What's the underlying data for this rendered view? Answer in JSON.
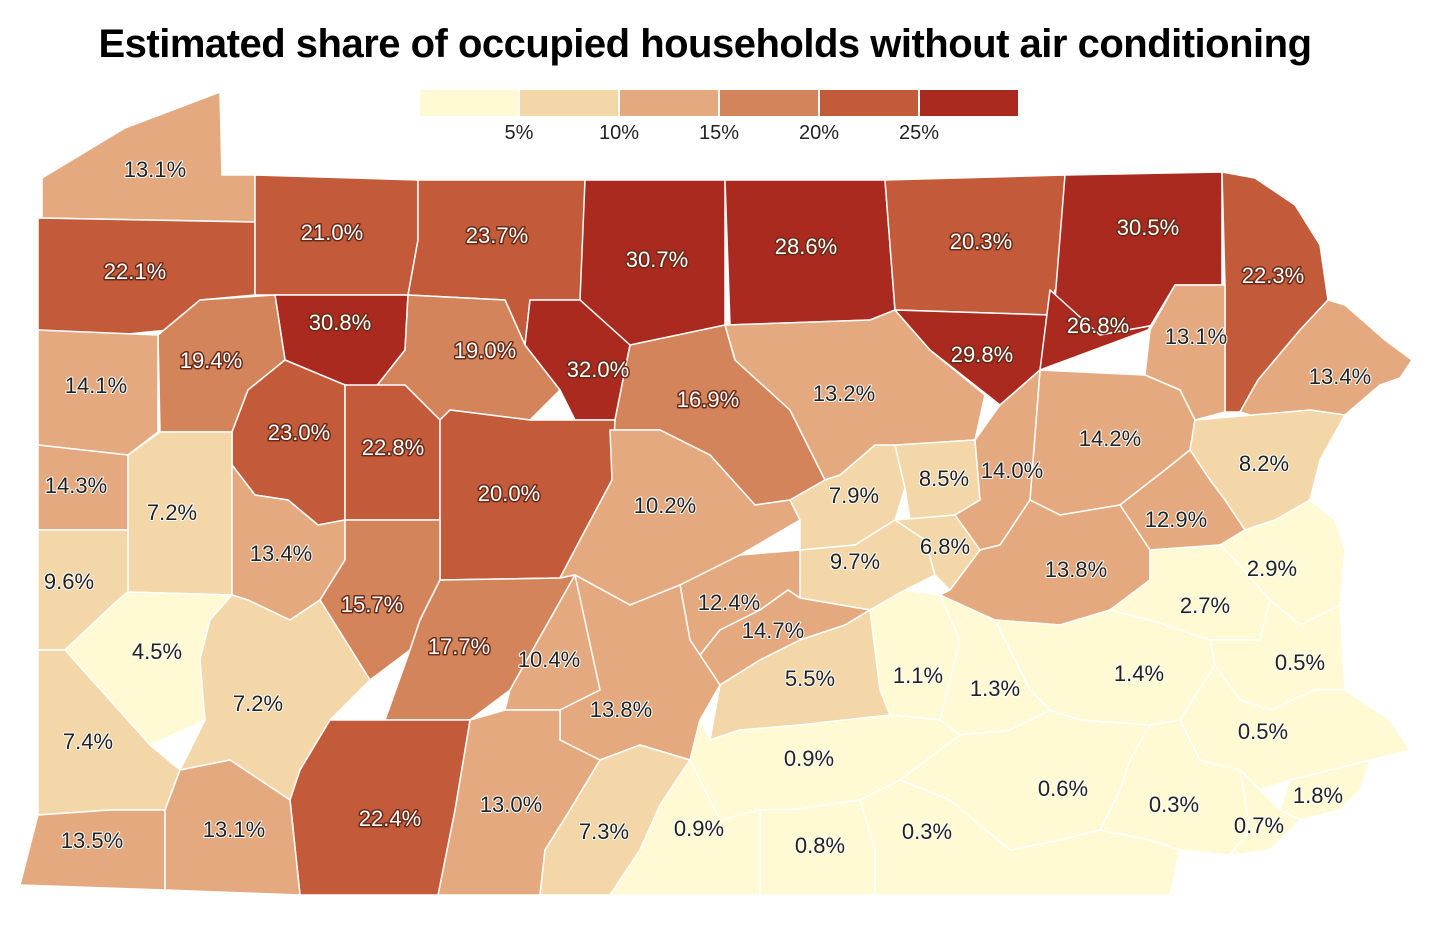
{
  "title": "Estimated share of occupied households without air conditioning",
  "legend": {
    "colors": [
      "#fff9d4",
      "#f3d7a8",
      "#e4a97e",
      "#d3845a",
      "#c35b3b",
      "#ab2a1f"
    ],
    "ticks": [
      "5%",
      "10%",
      "15%",
      "20%",
      "25%"
    ]
  },
  "counties": [
    {
      "label": "13.1%",
      "value": 13.1
    },
    {
      "label": "22.1%",
      "value": 22.1
    },
    {
      "label": "21.0%",
      "value": 21.0
    },
    {
      "label": "23.7%",
      "value": 23.7
    },
    {
      "label": "30.7%",
      "value": 30.7
    },
    {
      "label": "28.6%",
      "value": 28.6
    },
    {
      "label": "20.3%",
      "value": 20.3
    },
    {
      "label": "30.5%",
      "value": 30.5
    },
    {
      "label": "22.3%",
      "value": 22.3
    },
    {
      "label": "30.8%",
      "value": 30.8
    },
    {
      "label": "19.4%",
      "value": 19.4
    },
    {
      "label": "19.0%",
      "value": 19.0
    },
    {
      "label": "32.0%",
      "value": 32.0
    },
    {
      "label": "16.9%",
      "value": 16.9
    },
    {
      "label": "13.2%",
      "value": 13.2
    },
    {
      "label": "29.8%",
      "value": 29.8
    },
    {
      "label": "26.8%",
      "value": 26.8
    },
    {
      "label": "13.1%",
      "value": 13.1
    },
    {
      "label": "13.4%",
      "value": 13.4
    },
    {
      "label": "14.1%",
      "value": 14.1
    },
    {
      "label": "23.0%",
      "value": 23.0
    },
    {
      "label": "22.8%",
      "value": 22.8
    },
    {
      "label": "20.0%",
      "value": 20.0
    },
    {
      "label": "10.2%",
      "value": 10.2
    },
    {
      "label": "14.2%",
      "value": 14.2
    },
    {
      "label": "14.3%",
      "value": 14.3
    },
    {
      "label": "7.2%",
      "value": 7.2
    },
    {
      "label": "7.9%",
      "value": 7.9
    },
    {
      "label": "8.5%",
      "value": 8.5
    },
    {
      "label": "14.0%",
      "value": 14.0
    },
    {
      "label": "8.2%",
      "value": 8.2
    },
    {
      "label": "12.9%",
      "value": 12.9
    },
    {
      "label": "13.4%",
      "value": 13.4
    },
    {
      "label": "9.7%",
      "value": 9.7
    },
    {
      "label": "6.8%",
      "value": 6.8
    },
    {
      "label": "13.8%",
      "value": 13.8
    },
    {
      "label": "9.6%",
      "value": 9.6
    },
    {
      "label": "2.9%",
      "value": 2.9
    },
    {
      "label": "15.7%",
      "value": 15.7
    },
    {
      "label": "12.4%",
      "value": 12.4
    },
    {
      "label": "2.7%",
      "value": 2.7
    },
    {
      "label": "14.7%",
      "value": 14.7
    },
    {
      "label": "17.7%",
      "value": 17.7
    },
    {
      "label": "4.5%",
      "value": 4.5
    },
    {
      "label": "10.4%",
      "value": 10.4
    },
    {
      "label": "0.5%",
      "value": 0.5
    },
    {
      "label": "1.1%",
      "value": 1.1
    },
    {
      "label": "1.4%",
      "value": 1.4
    },
    {
      "label": "5.5%",
      "value": 5.5
    },
    {
      "label": "1.3%",
      "value": 1.3
    },
    {
      "label": "7.2%",
      "value": 7.2
    },
    {
      "label": "13.8%",
      "value": 13.8
    },
    {
      "label": "0.5%",
      "value": 0.5
    },
    {
      "label": "7.4%",
      "value": 7.4
    },
    {
      "label": "0.9%",
      "value": 0.9
    },
    {
      "label": "0.6%",
      "value": 0.6
    },
    {
      "label": "1.8%",
      "value": 1.8
    },
    {
      "label": "13.0%",
      "value": 13.0
    },
    {
      "label": "0.3%",
      "value": 0.3
    },
    {
      "label": "22.4%",
      "value": 22.4
    },
    {
      "label": "13.5%",
      "value": 13.5
    },
    {
      "label": "13.1%",
      "value": 13.1
    },
    {
      "label": "7.3%",
      "value": 7.3
    },
    {
      "label": "0.9%",
      "value": 0.9
    },
    {
      "label": "0.7%",
      "value": 0.7
    },
    {
      "label": "0.8%",
      "value": 0.8
    },
    {
      "label": "0.3%",
      "value": 0.3
    }
  ]
}
